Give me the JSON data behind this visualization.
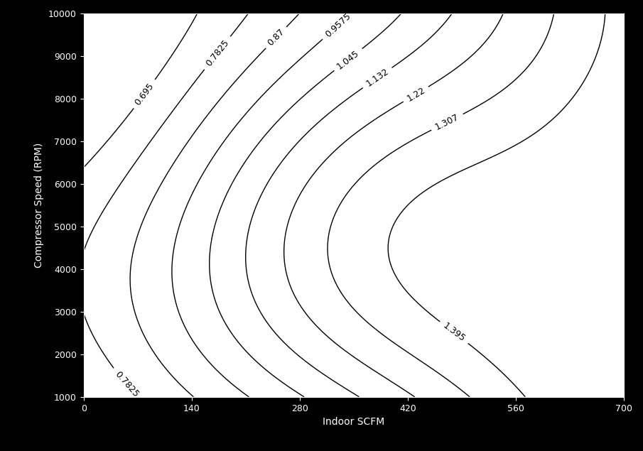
{
  "xlabel": "Indoor SCFM",
  "ylabel": "Compressor Speed (RPM)",
  "x_range": [
    0,
    700
  ],
  "y_range": [
    1000,
    10000
  ],
  "contour_levels": [
    0.695,
    0.7825,
    0.87,
    0.9575,
    1.045,
    1.132,
    1.22,
    1.307,
    1.395
  ],
  "contour_color": "black",
  "background_color": "black",
  "plot_bg_color": "white",
  "label_fontsize": 9,
  "tick_color": "white",
  "x_ticks": [
    0,
    140,
    280,
    420,
    560,
    700
  ],
  "y_ticks": [
    1000,
    2000,
    3000,
    4000,
    5000,
    6000,
    7000,
    8000,
    9000,
    10000
  ]
}
